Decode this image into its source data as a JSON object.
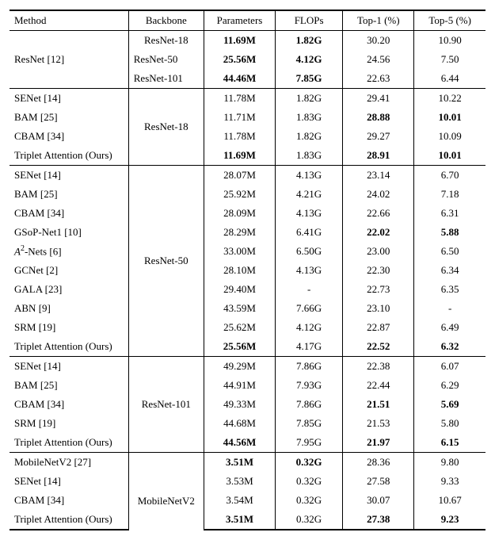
{
  "table": {
    "columns": [
      "Method",
      "Backbone",
      "Parameters",
      "FLOPs",
      "Top-1 (%)",
      "Top-5 (%)"
    ],
    "groups": [
      {
        "backbone": "",
        "backbone_rowspan": 0,
        "rows": [
          {
            "method": "ResNet [12]",
            "method_rowspan": 3,
            "backbone": "ResNet-18",
            "params": "11.69M",
            "params_b": true,
            "flops": "1.82G",
            "flops_b": true,
            "top1": "30.20",
            "top5": "10.90"
          },
          {
            "method": "",
            "backbone": "ResNet-50",
            "params": "25.56M",
            "params_b": true,
            "flops": "4.12G",
            "flops_b": true,
            "top1": "24.56",
            "top5": "7.50"
          },
          {
            "method": "",
            "backbone": "ResNet-101",
            "params": "44.46M",
            "params_b": true,
            "flops": "7.85G",
            "flops_b": true,
            "top1": "22.63",
            "top5": "6.44"
          }
        ]
      },
      {
        "backbone": "ResNet-18",
        "backbone_rowspan": 4,
        "rows": [
          {
            "method": "SENet [14]",
            "params": "11.78M",
            "flops": "1.82G",
            "top1": "29.41",
            "top5": "10.22"
          },
          {
            "method": "BAM [25]",
            "params": "11.71M",
            "flops": "1.83G",
            "top1": "28.88",
            "top1_b": true,
            "top5": "10.01",
            "top5_b": true
          },
          {
            "method": "CBAM [34]",
            "params": "11.78M",
            "flops": "1.82G",
            "top1": "29.27",
            "top5": "10.09"
          },
          {
            "method": "Triplet Attention (Ours)",
            "params": "11.69M",
            "params_b": true,
            "flops": "1.83G",
            "top1": "28.91",
            "top1_b": true,
            "top5": "10.01",
            "top5_b": true
          }
        ]
      },
      {
        "backbone": "ResNet-50",
        "backbone_rowspan": 10,
        "rows": [
          {
            "method": "SENet [14]",
            "params": "28.07M",
            "flops": "4.13G",
            "top1": "23.14",
            "top5": "6.70"
          },
          {
            "method": "BAM [25]",
            "params": "25.92M",
            "flops": "4.21G",
            "top1": "24.02",
            "top5": "7.18"
          },
          {
            "method": "CBAM [34]",
            "params": "28.09M",
            "flops": "4.13G",
            "top1": "22.66",
            "top5": "6.31"
          },
          {
            "method": "GSoP-Net1 [10]",
            "params": "28.29M",
            "flops": "6.41G",
            "top1": "22.02",
            "top1_b": true,
            "top5": "5.88",
            "top5_b": true
          },
          {
            "method_html": "<i>A</i><span class='sup'>2</span>-Nets [6]",
            "params": "33.00M",
            "flops": "6.50G",
            "top1": "23.00",
            "top5": "6.50"
          },
          {
            "method": "GCNet [2]",
            "params": "28.10M",
            "flops": "4.13G",
            "top1": "22.30",
            "top5": "6.34"
          },
          {
            "method": "GALA [23]",
            "params": "29.40M",
            "flops": "-",
            "top1": "22.73",
            "top5": "6.35"
          },
          {
            "method": "ABN [9]",
            "params": "43.59M",
            "flops": "7.66G",
            "top1": "23.10",
            "top5": "-"
          },
          {
            "method": "SRM [19]",
            "params": "25.62M",
            "flops": "4.12G",
            "top1": "22.87",
            "top5": "6.49"
          },
          {
            "method": "Triplet Attention (Ours)",
            "params": "25.56M",
            "params_b": true,
            "flops": "4.17G",
            "top1": "22.52",
            "top1_b": true,
            "top5": "6.32",
            "top5_b": true
          }
        ]
      },
      {
        "backbone": "ResNet-101",
        "backbone_rowspan": 5,
        "rows": [
          {
            "method": "SENet [14]",
            "params": "49.29M",
            "flops": "7.86G",
            "top1": "22.38",
            "top5": "6.07"
          },
          {
            "method": "BAM [25]",
            "params": "44.91M",
            "flops": "7.93G",
            "top1": "22.44",
            "top5": "6.29"
          },
          {
            "method": "CBAM [34]",
            "params": "49.33M",
            "flops": "7.86G",
            "top1": "21.51",
            "top1_b": true,
            "top5": "5.69",
            "top5_b": true
          },
          {
            "method": "SRM [19]",
            "params": "44.68M",
            "flops": "7.85G",
            "top1": "21.53",
            "top5": "5.80"
          },
          {
            "method": "Triplet Attention (Ours)",
            "params": "44.56M",
            "params_b": true,
            "flops": "7.95G",
            "top1": "21.97",
            "top1_b": true,
            "top5": "6.15",
            "top5_b": true
          }
        ]
      },
      {
        "backbone": "MobileNetV2",
        "backbone_rowspan": 4,
        "rows": [
          {
            "method": "MobileNetV2 [27]",
            "own_backbone": "",
            "params": "3.51M",
            "params_b": true,
            "flops": "0.32G",
            "flops_b": true,
            "top1": "28.36",
            "top5": "9.80"
          },
          {
            "method": "SENet [14]",
            "params": "3.53M",
            "flops": "0.32G",
            "top1": "27.58",
            "top5": "9.33"
          },
          {
            "method": "CBAM [34]",
            "params": "3.54M",
            "flops": "0.32G",
            "top1": "30.07",
            "top5": "10.67"
          },
          {
            "method": "Triplet Attention (Ours)",
            "params": "3.51M",
            "params_b": true,
            "flops": "0.32G",
            "top1": "27.38",
            "top1_b": true,
            "top5": "9.23",
            "top5_b": true
          }
        ]
      }
    ]
  }
}
